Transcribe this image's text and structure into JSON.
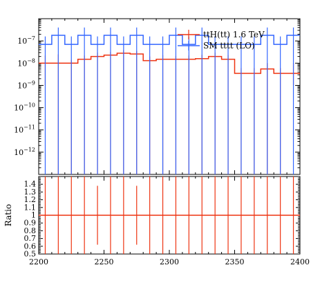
{
  "chart_data": [
    {
      "type": "line",
      "panel": "main",
      "yscale": "log",
      "xlim": [
        2200,
        2400
      ],
      "ylim": [
        1e-13,
        1e-06
      ],
      "y_ticks": [
        {
          "value": 1e-12,
          "base": "10",
          "exp": "−12"
        },
        {
          "value": 1e-11,
          "base": "10",
          "exp": "−11"
        },
        {
          "value": 1e-10,
          "base": "10",
          "exp": "−10"
        },
        {
          "value": 1e-09,
          "base": "10",
          "exp": "−9"
        },
        {
          "value": 1e-08,
          "base": "10",
          "exp": "−8"
        },
        {
          "value": 1e-07,
          "base": "10",
          "exp": "−7"
        }
      ],
      "bin_edges": [
        2200,
        2210,
        2220,
        2230,
        2240,
        2250,
        2260,
        2270,
        2280,
        2290,
        2300,
        2310,
        2320,
        2330,
        2340,
        2350,
        2360,
        2370,
        2380,
        2390,
        2400
      ],
      "legend_position": "top-right",
      "series": [
        {
          "name": "ttH(tt) 1.6 TeV",
          "color": "#ee3311",
          "values": [
            1e-08,
            1e-08,
            1e-08,
            1.5e-08,
            2e-08,
            2.3e-08,
            2.8e-08,
            2.6e-08,
            1.3e-08,
            1.5e-08,
            1.5e-08,
            1.5e-08,
            1.6e-08,
            2e-08,
            1.5e-08,
            3.5e-09,
            3.5e-09,
            5.5e-09,
            3.5e-09,
            3.5e-09
          ],
          "err_lo": [
            1e-09,
            1e-13,
            1e-13,
            1e-13,
            1e-13,
            1e-13,
            1e-13,
            1e-13,
            1e-13,
            1e-13,
            1e-13,
            1e-13,
            1e-13,
            1e-13,
            1e-13,
            1e-13,
            1e-13,
            1e-13,
            1e-13,
            1e-09
          ],
          "err_hi": [
            2.2e-08,
            2.5e-08,
            1.4e-08,
            2.2e-08,
            3e-08,
            3.2e-08,
            3.8e-08,
            3.5e-08,
            2e-08,
            2.3e-08,
            2.1e-08,
            2.2e-08,
            2.4e-08,
            3e-08,
            2.3e-08,
            6e-09,
            6e-09,
            1e-08,
            6e-09,
            1e-08
          ]
        },
        {
          "name": "SM tttt (LO)",
          "color": "#3366ff",
          "values": [
            7e-08,
            1.8e-07,
            7e-08,
            1.8e-07,
            7e-08,
            1.8e-07,
            7e-08,
            1.8e-07,
            7e-08,
            7e-08,
            1.8e-07,
            7e-08,
            1.8e-07,
            7e-08,
            7e-08,
            7e-08,
            7e-08,
            1.8e-07,
            7e-08,
            1.8e-07
          ],
          "err_lo": [
            1e-13,
            1e-13,
            1e-13,
            1e-13,
            1e-13,
            1e-13,
            1e-13,
            1e-13,
            1e-13,
            1e-13,
            1e-13,
            1e-13,
            1e-13,
            1e-13,
            1e-13,
            1e-13,
            1e-13,
            1e-13,
            1e-13,
            1e-13
          ],
          "err_hi": [
            1.6e-07,
            4e-07,
            1.6e-07,
            4e-07,
            1.6e-07,
            4e-07,
            1.6e-07,
            4e-07,
            1.6e-07,
            1.6e-07,
            4e-07,
            1.6e-07,
            4e-07,
            1.6e-07,
            1.6e-07,
            1.6e-07,
            1.6e-07,
            4e-07,
            1.6e-07,
            4e-07
          ]
        }
      ]
    },
    {
      "type": "line",
      "panel": "ratio",
      "ylabel": "Ratio",
      "xlim": [
        2200,
        2400
      ],
      "ylim": [
        0.5,
        1.5
      ],
      "y_ticks": [
        "0.5",
        "0.6",
        "0.7",
        "0.8",
        "0.9",
        "1",
        "1.1",
        "1.2",
        "1.3",
        "1.4"
      ],
      "x_ticks": [
        "2200",
        "2250",
        "2300",
        "2350",
        "2400"
      ],
      "reference_line": 1,
      "series": [
        {
          "name": "ttH(tt) 1.6 TeV",
          "color": "#ee3311",
          "values": [
            1,
            1,
            1,
            1,
            1,
            1,
            1,
            1,
            1,
            1,
            1,
            1,
            1,
            1,
            1,
            1,
            1,
            1,
            1,
            1
          ],
          "err_lo": [
            0.5,
            0.5,
            0.5,
            0.5,
            0.62,
            0.5,
            0.5,
            0.62,
            0.5,
            0.5,
            0.5,
            0.5,
            0.5,
            0.5,
            0.5,
            0.5,
            0.5,
            0.5,
            0.5,
            0.5
          ],
          "err_hi": [
            1.5,
            1.5,
            1.5,
            1.5,
            1.38,
            1.5,
            1.5,
            1.38,
            1.5,
            1.5,
            1.5,
            1.5,
            1.5,
            1.5,
            1.5,
            1.5,
            1.5,
            1.5,
            1.5,
            1.5
          ]
        }
      ]
    }
  ]
}
